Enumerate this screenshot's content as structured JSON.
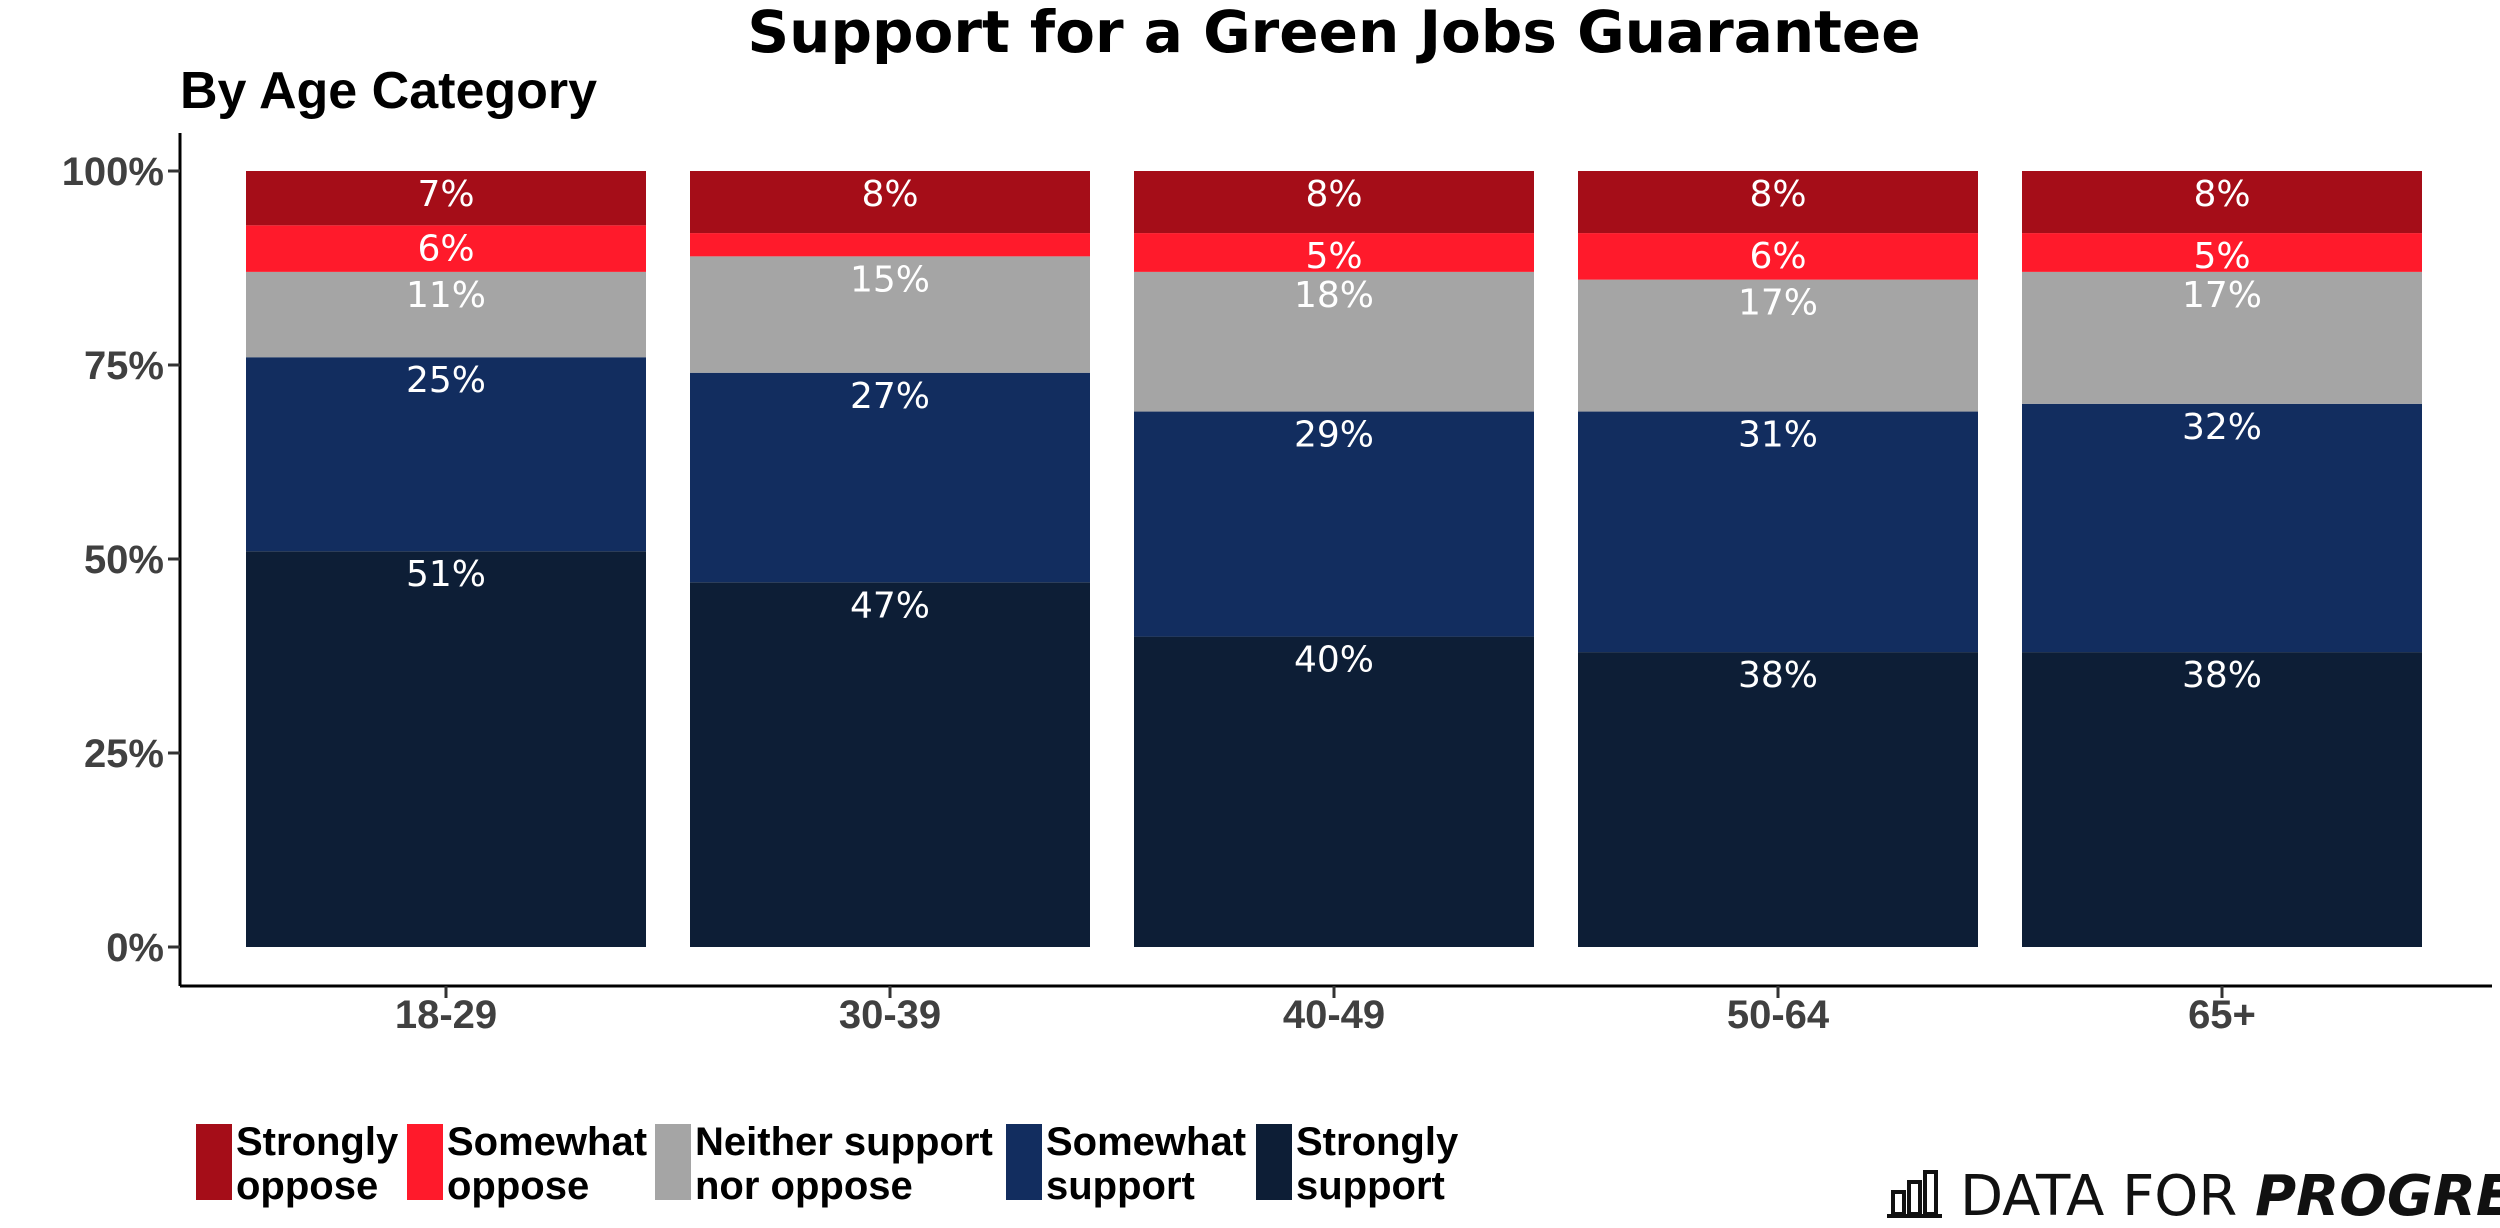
{
  "chart_data": {
    "type": "bar",
    "stacked": true,
    "title": "Support for a Green Jobs Guarantee",
    "subtitle": "By Age Category",
    "categories": [
      "18-29",
      "30-39",
      "40-49",
      "50-64",
      "65+"
    ],
    "ylim": [
      0,
      100
    ],
    "yticks": [
      "0%",
      "25%",
      "50%",
      "75%",
      "100%"
    ],
    "grid": false,
    "legend_position": "bottom",
    "series": [
      {
        "name": "Strongly support",
        "color": "#0D1E36",
        "values": [
          51,
          47,
          40,
          38,
          38
        ],
        "labels": [
          "51%",
          "47%",
          "40%",
          "38%",
          "38%"
        ]
      },
      {
        "name": "Somewhat support",
        "color": "#122D5F",
        "values": [
          25,
          27,
          29,
          31,
          32
        ],
        "labels": [
          "25%",
          "27%",
          "29%",
          "31%",
          "32%"
        ]
      },
      {
        "name": "Neither support nor oppose",
        "color": "#A5A5A5",
        "values": [
          11,
          15,
          18,
          17,
          17
        ],
        "labels": [
          "11%",
          "15%",
          "18%",
          "17%",
          "17%"
        ]
      },
      {
        "name": "Somewhat oppose",
        "color": "#FF1A2B",
        "values": [
          6,
          3,
          5,
          6,
          5
        ],
        "labels": [
          "6%",
          "",
          "5%",
          "6%",
          "5%"
        ]
      },
      {
        "name": "Strongly oppose",
        "color": "#A50D18",
        "values": [
          7,
          8,
          8,
          8,
          8
        ],
        "labels": [
          "7%",
          "8%",
          "8%",
          "8%",
          "8%"
        ]
      }
    ],
    "legend": [
      {
        "lines": [
          "Strongly",
          "oppose"
        ],
        "color": "#A50D18"
      },
      {
        "lines": [
          "Somewhat",
          "oppose"
        ],
        "color": "#FF1A2B"
      },
      {
        "lines": [
          "Neither support",
          "nor oppose"
        ],
        "color": "#A5A5A5"
      },
      {
        "lines": [
          "Somewhat",
          "support"
        ],
        "color": "#122D5F"
      },
      {
        "lines": [
          "Strongly",
          "support"
        ],
        "color": "#0D1E36"
      }
    ]
  },
  "branding": {
    "prefix": "DATA FOR ",
    "emphasis": "PROGRESS",
    "logo_icon": "bar-chart-icon"
  }
}
